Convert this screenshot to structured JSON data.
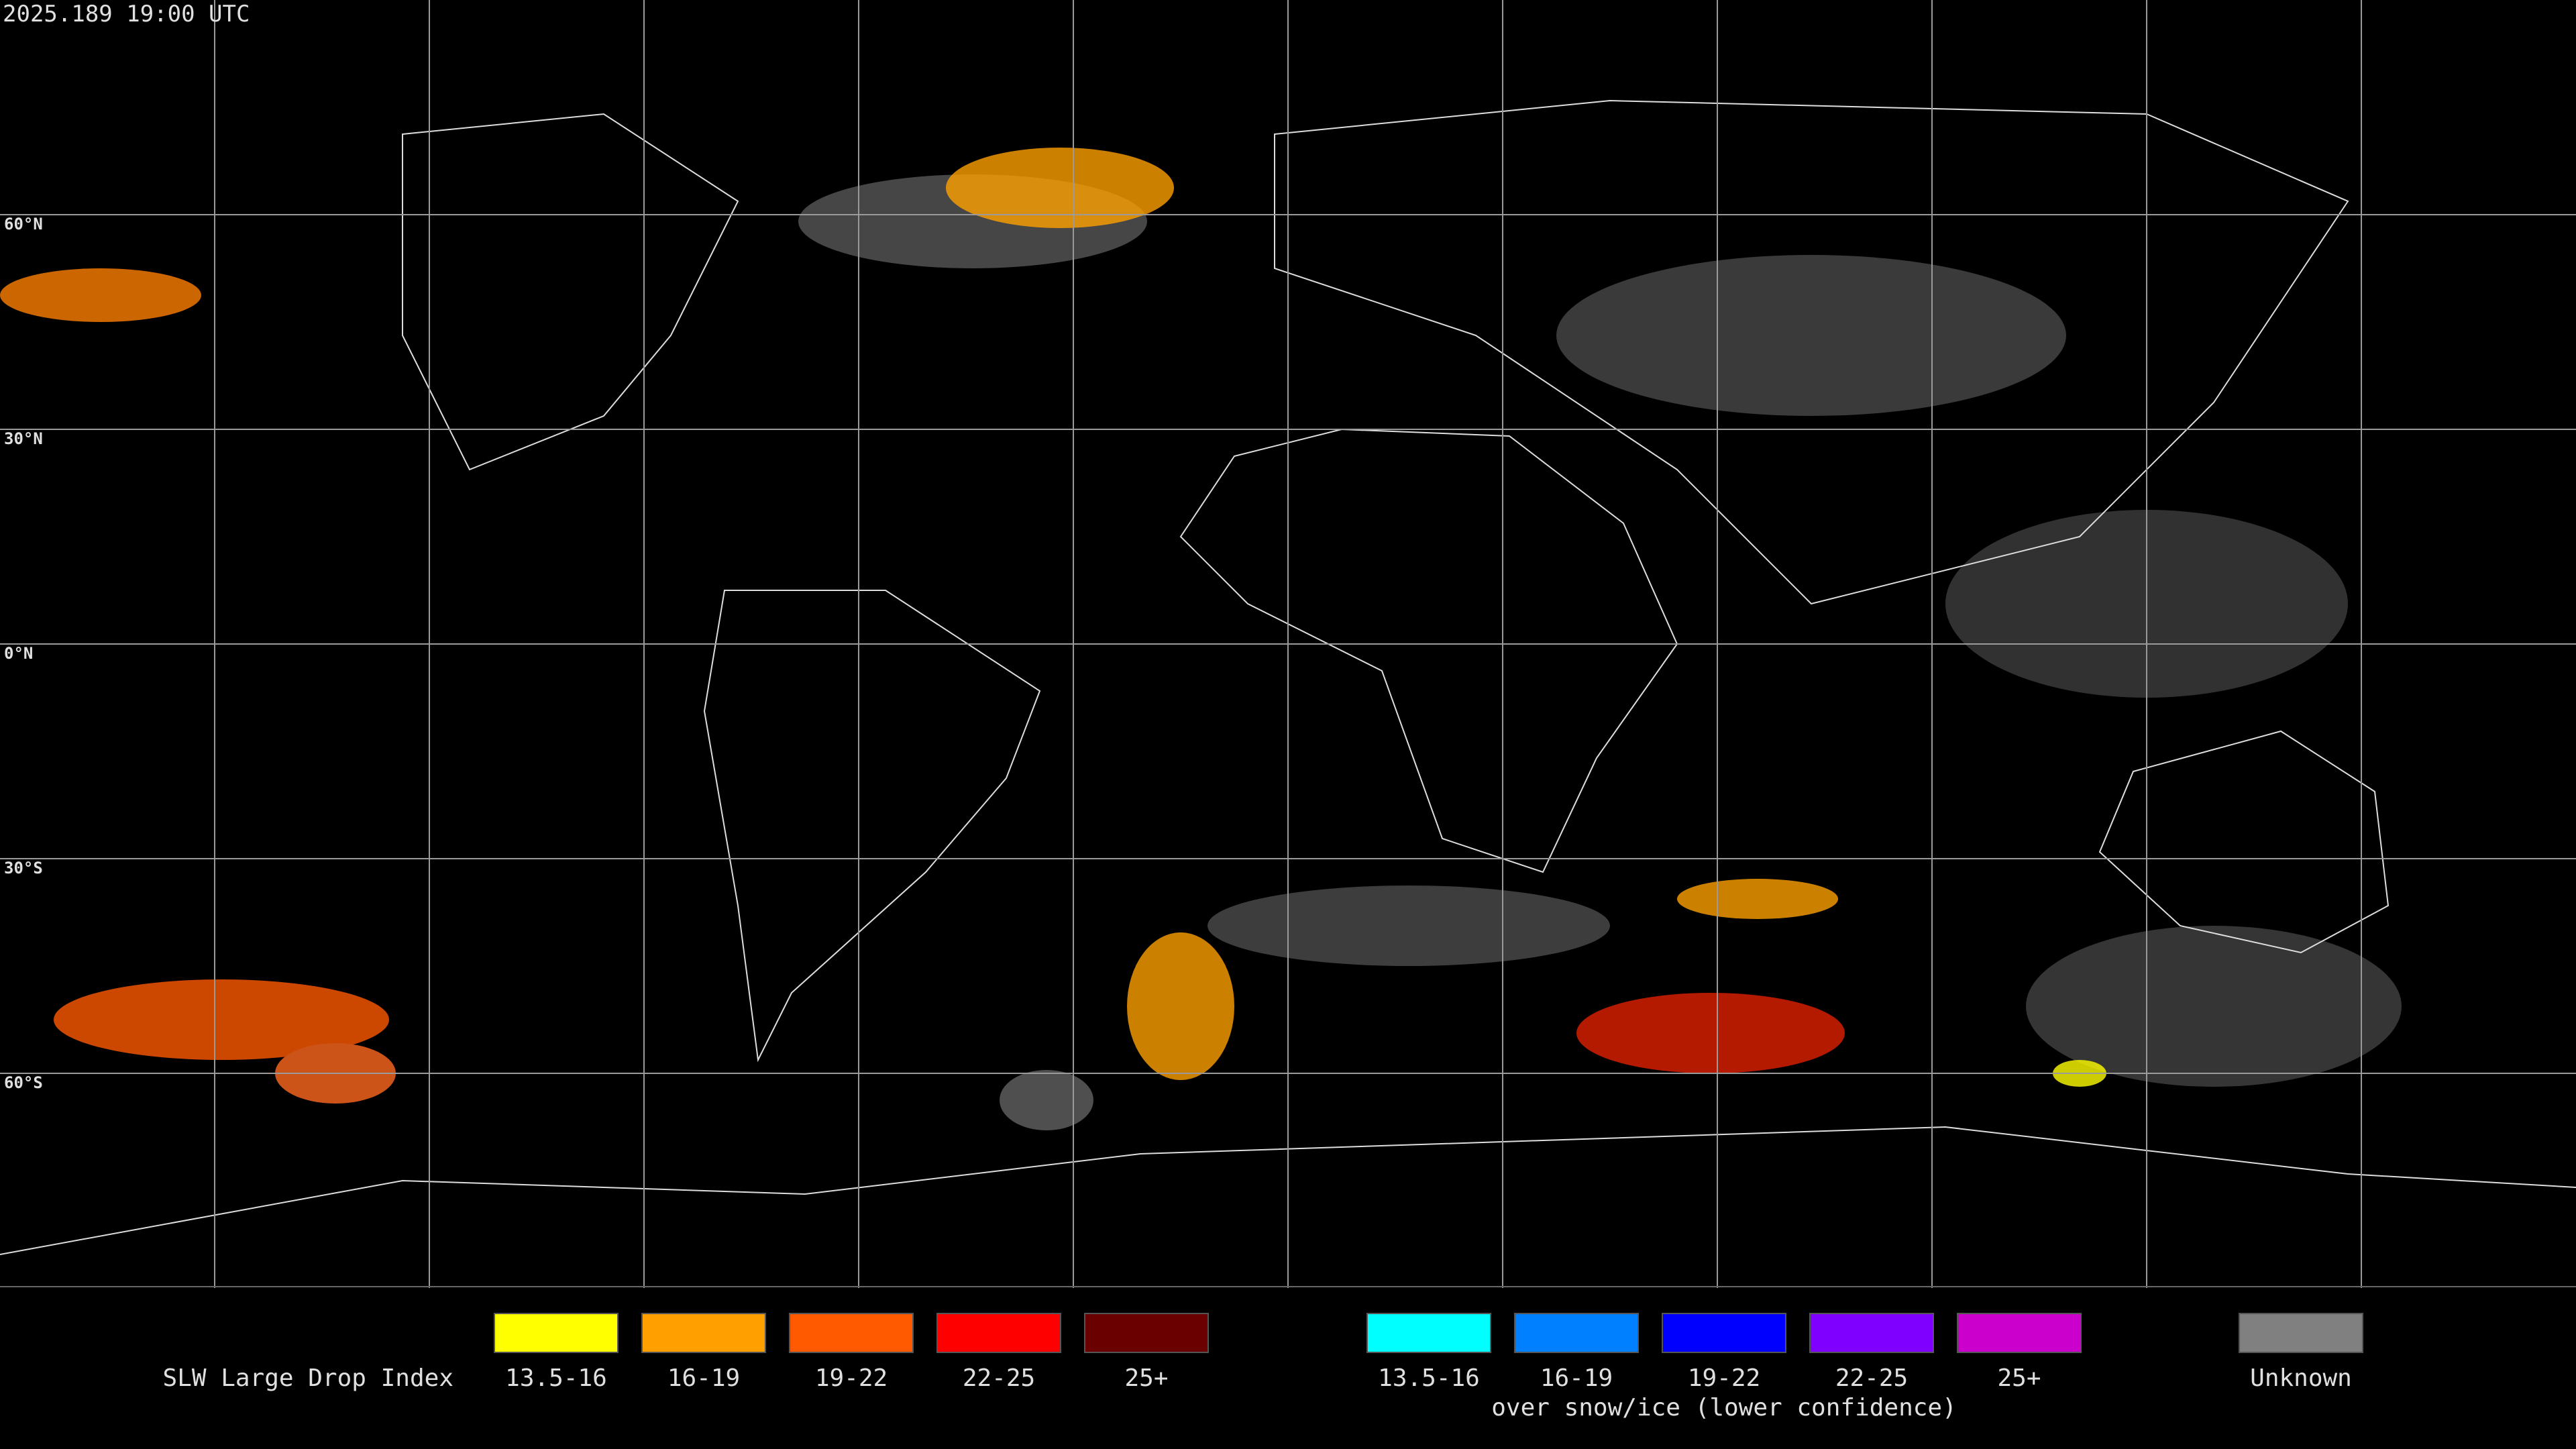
{
  "timestamp": "2025.189 19:00 UTC",
  "latitude_labels": [
    "60°N",
    "30°N",
    "0°N",
    "30°S",
    "60°S"
  ],
  "legend": {
    "title": "SLW Large Drop Index",
    "groups": [
      {
        "items": [
          {
            "label": "13.5-16",
            "color": "#ffff00"
          },
          {
            "label": "16-19",
            "color": "#ffa000"
          },
          {
            "label": "19-22",
            "color": "#ff5a00"
          },
          {
            "label": "22-25",
            "color": "#ff0000"
          },
          {
            "label": "25+",
            "color": "#6b0000"
          }
        ]
      },
      {
        "items": [
          {
            "label": "13.5-16",
            "color": "#00ffff"
          },
          {
            "label": "16-19",
            "color": "#0080ff"
          },
          {
            "label": "19-22",
            "color": "#0000ff"
          },
          {
            "label": "22-25",
            "color": "#8000ff"
          },
          {
            "label": "25+",
            "color": "#cc00cc"
          }
        ],
        "caption": "over snow/ice (lower confidence)"
      },
      {
        "items": [
          {
            "label": "Unknown",
            "color": "#808080"
          }
        ]
      }
    ]
  }
}
